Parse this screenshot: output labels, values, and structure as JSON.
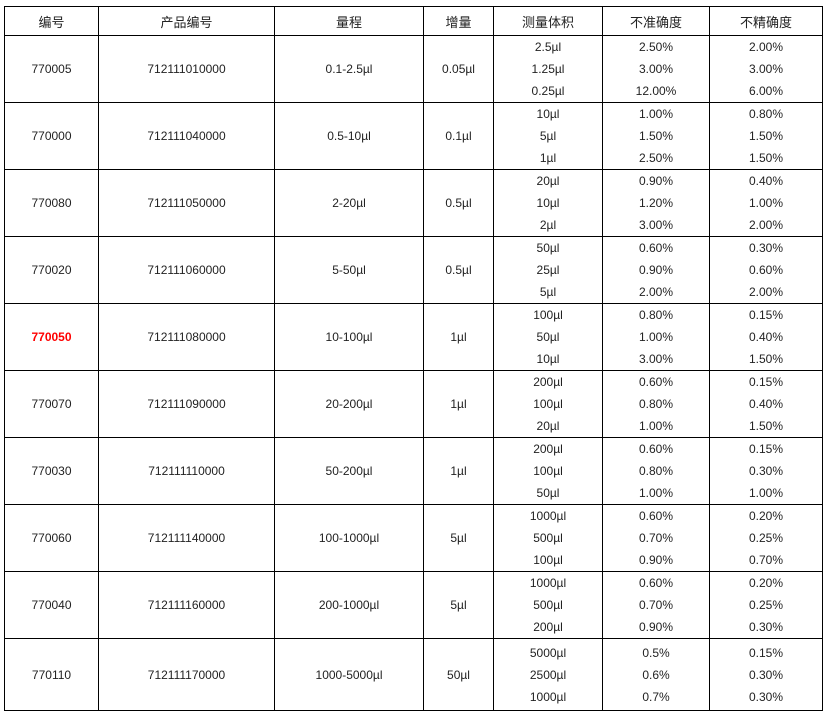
{
  "table": {
    "headers": [
      "编号",
      "产品编号",
      "量程",
      "增量",
      "测量体积",
      "不准确度",
      "不精确度"
    ],
    "rows": [
      {
        "id": "770005",
        "product_id": "712111010000",
        "range": "0.1-2.5µl",
        "increment": "0.05µl",
        "id_highlighted": false,
        "measurements": [
          {
            "volume": "2.5µl",
            "inaccuracy": "2.50%",
            "imprecision": "2.00%"
          },
          {
            "volume": "1.25µl",
            "inaccuracy": "3.00%",
            "imprecision": "3.00%"
          },
          {
            "volume": "0.25µl",
            "inaccuracy": "12.00%",
            "imprecision": "6.00%"
          }
        ]
      },
      {
        "id": "770000",
        "product_id": "712111040000",
        "range": "0.5-10µl",
        "increment": "0.1µl",
        "id_highlighted": false,
        "measurements": [
          {
            "volume": "10µl",
            "inaccuracy": "1.00%",
            "imprecision": "0.80%"
          },
          {
            "volume": "5µl",
            "inaccuracy": "1.50%",
            "imprecision": "1.50%"
          },
          {
            "volume": "1µl",
            "inaccuracy": "2.50%",
            "imprecision": "1.50%"
          }
        ]
      },
      {
        "id": "770080",
        "product_id": "712111050000",
        "range": "2-20µl",
        "increment": "0.5µl",
        "id_highlighted": false,
        "measurements": [
          {
            "volume": "20µl",
            "inaccuracy": "0.90%",
            "imprecision": "0.40%"
          },
          {
            "volume": "10µl",
            "inaccuracy": "1.20%",
            "imprecision": "1.00%"
          },
          {
            "volume": "2µl",
            "inaccuracy": "3.00%",
            "imprecision": "2.00%"
          }
        ]
      },
      {
        "id": "770020",
        "product_id": "712111060000",
        "range": "5-50µl",
        "increment": "0.5µl",
        "id_highlighted": false,
        "measurements": [
          {
            "volume": "50µl",
            "inaccuracy": "0.60%",
            "imprecision": "0.30%"
          },
          {
            "volume": "25µl",
            "inaccuracy": "0.90%",
            "imprecision": "0.60%"
          },
          {
            "volume": "5µl",
            "inaccuracy": "2.00%",
            "imprecision": "2.00%"
          }
        ]
      },
      {
        "id": "770050",
        "product_id": "712111080000",
        "range": "10-100µl",
        "increment": "1µl",
        "id_highlighted": true,
        "measurements": [
          {
            "volume": "100µl",
            "inaccuracy": "0.80%",
            "imprecision": "0.15%"
          },
          {
            "volume": "50µl",
            "inaccuracy": "1.00%",
            "imprecision": "0.40%"
          },
          {
            "volume": "10µl",
            "inaccuracy": "3.00%",
            "imprecision": "1.50%"
          }
        ]
      },
      {
        "id": "770070",
        "product_id": "712111090000",
        "range": "20-200µl",
        "increment": "1µl",
        "id_highlighted": false,
        "measurements": [
          {
            "volume": "200µl",
            "inaccuracy": "0.60%",
            "imprecision": "0.15%"
          },
          {
            "volume": "100µl",
            "inaccuracy": "0.80%",
            "imprecision": "0.40%"
          },
          {
            "volume": "20µl",
            "inaccuracy": "1.00%",
            "imprecision": "1.50%"
          }
        ]
      },
      {
        "id": "770030",
        "product_id": "712111110000",
        "range": "50-200µl",
        "increment": "1µl",
        "id_highlighted": false,
        "measurements": [
          {
            "volume": "200µl",
            "inaccuracy": "0.60%",
            "imprecision": "0.15%"
          },
          {
            "volume": "100µl",
            "inaccuracy": "0.80%",
            "imprecision": "0.30%"
          },
          {
            "volume": "50µl",
            "inaccuracy": "1.00%",
            "imprecision": "1.00%"
          }
        ]
      },
      {
        "id": "770060",
        "product_id": "712111140000",
        "range": "100-1000µl",
        "increment": "5µl",
        "id_highlighted": false,
        "measurements": [
          {
            "volume": "1000µl",
            "inaccuracy": "0.60%",
            "imprecision": "0.20%"
          },
          {
            "volume": "500µl",
            "inaccuracy": "0.70%",
            "imprecision": "0.25%"
          },
          {
            "volume": "100µl",
            "inaccuracy": "0.90%",
            "imprecision": "0.70%"
          }
        ]
      },
      {
        "id": "770040",
        "product_id": "712111160000",
        "range": "200-1000µl",
        "increment": "5µl",
        "id_highlighted": false,
        "measurements": [
          {
            "volume": "1000µl",
            "inaccuracy": "0.60%",
            "imprecision": "0.20%"
          },
          {
            "volume": "500µl",
            "inaccuracy": "0.70%",
            "imprecision": "0.25%"
          },
          {
            "volume": "200µl",
            "inaccuracy": "0.90%",
            "imprecision": "0.30%"
          }
        ]
      },
      {
        "id": "770110",
        "product_id": "712111170000",
        "range": "1000-5000µl",
        "increment": "50µl",
        "id_highlighted": false,
        "measurements": [
          {
            "volume": "5000µl",
            "inaccuracy": "0.5%",
            "imprecision": "0.15%"
          },
          {
            "volume": "2500µl",
            "inaccuracy": "0.6%",
            "imprecision": "0.30%"
          },
          {
            "volume": "1000µl",
            "inaccuracy": "0.7%",
            "imprecision": "0.30%"
          }
        ]
      }
    ]
  },
  "colors": {
    "highlight_red": "#ff0000",
    "border": "#000000",
    "text": "#222222",
    "background": "#ffffff"
  }
}
